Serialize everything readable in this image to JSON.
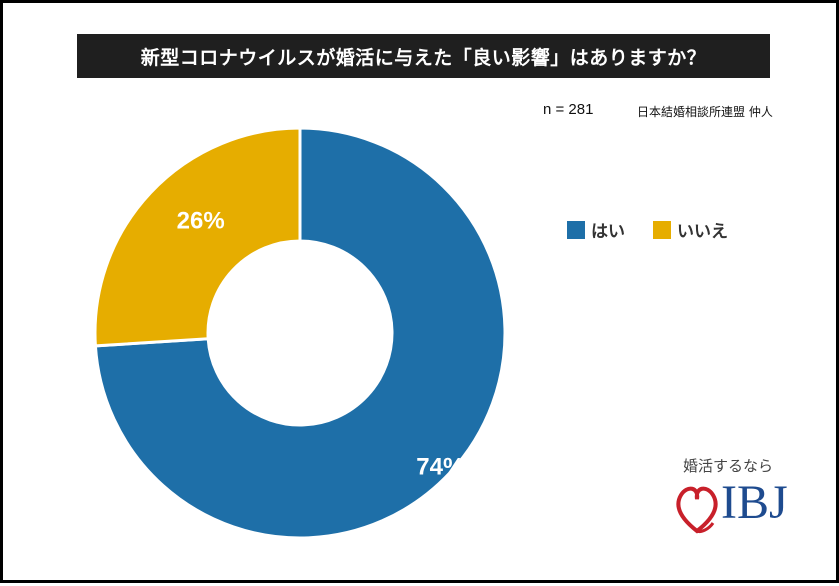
{
  "chart_data": {
    "type": "pie",
    "title": "新型コロナウイルスが婚活に与えた「良い影響」はありますか？",
    "sample_size": "n = 281",
    "source": "日本結婚相談所連盟 仲人",
    "categories": [
      "はい",
      "いいえ"
    ],
    "values": [
      74,
      26
    ],
    "labels": [
      "74%",
      "26%"
    ],
    "colors": [
      "#1e6fa8",
      "#e6ad00"
    ],
    "donut": true,
    "legend_position": "right"
  },
  "logo": {
    "tagline": "婚活するなら",
    "wordmark": "IBJ",
    "heart_color": "#c8202a",
    "text_color": "#1e4b8f"
  }
}
